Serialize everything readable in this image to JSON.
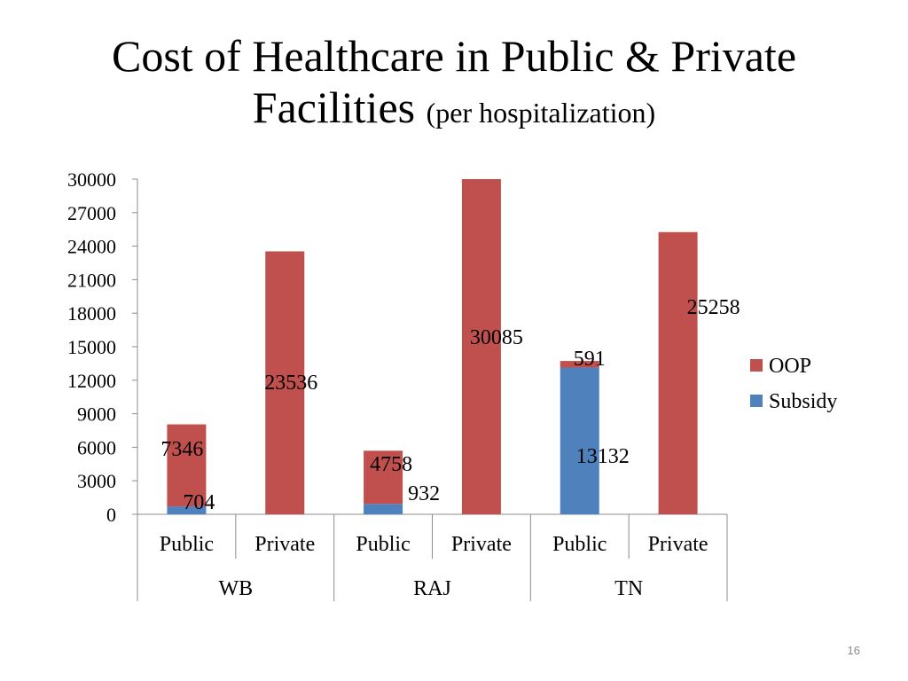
{
  "slide": {
    "title_main_line1": "Cost of Healthcare in Public & Private",
    "title_main_line2": "Facilities",
    "title_sub": "(per hospitalization)",
    "page_number": "16"
  },
  "chart_data": {
    "type": "bar",
    "stacked": true,
    "title": "Cost of Healthcare in Public & Private Facilities (per hospitalization)",
    "xlabel": "",
    "ylabel": "",
    "ylim": [
      0,
      30000
    ],
    "yticks": [
      0,
      3000,
      6000,
      9000,
      12000,
      15000,
      18000,
      21000,
      24000,
      27000,
      30000
    ],
    "groups": [
      "WB",
      "RAJ",
      "TN"
    ],
    "categories": [
      "Public",
      "Private",
      "Public",
      "Private",
      "Public",
      "Private"
    ],
    "series": [
      {
        "name": "Subsidy",
        "color": "#4F81BD",
        "values": [
          704,
          0,
          932,
          0,
          13132,
          0
        ]
      },
      {
        "name": "OOP",
        "color": "#C0504D",
        "values": [
          7346,
          23536,
          4758,
          30085,
          591,
          25258
        ]
      }
    ],
    "data_labels": [
      {
        "text": "704"
      },
      {
        "text": "7346"
      },
      {
        "text": "23536"
      },
      {
        "text": "932"
      },
      {
        "text": "4758"
      },
      {
        "text": "30085"
      },
      {
        "text": "13132"
      },
      {
        "text": "591"
      },
      {
        "text": "25258"
      }
    ],
    "legend": {
      "position": "right",
      "entries": [
        "OOP",
        "Subsidy"
      ]
    }
  }
}
